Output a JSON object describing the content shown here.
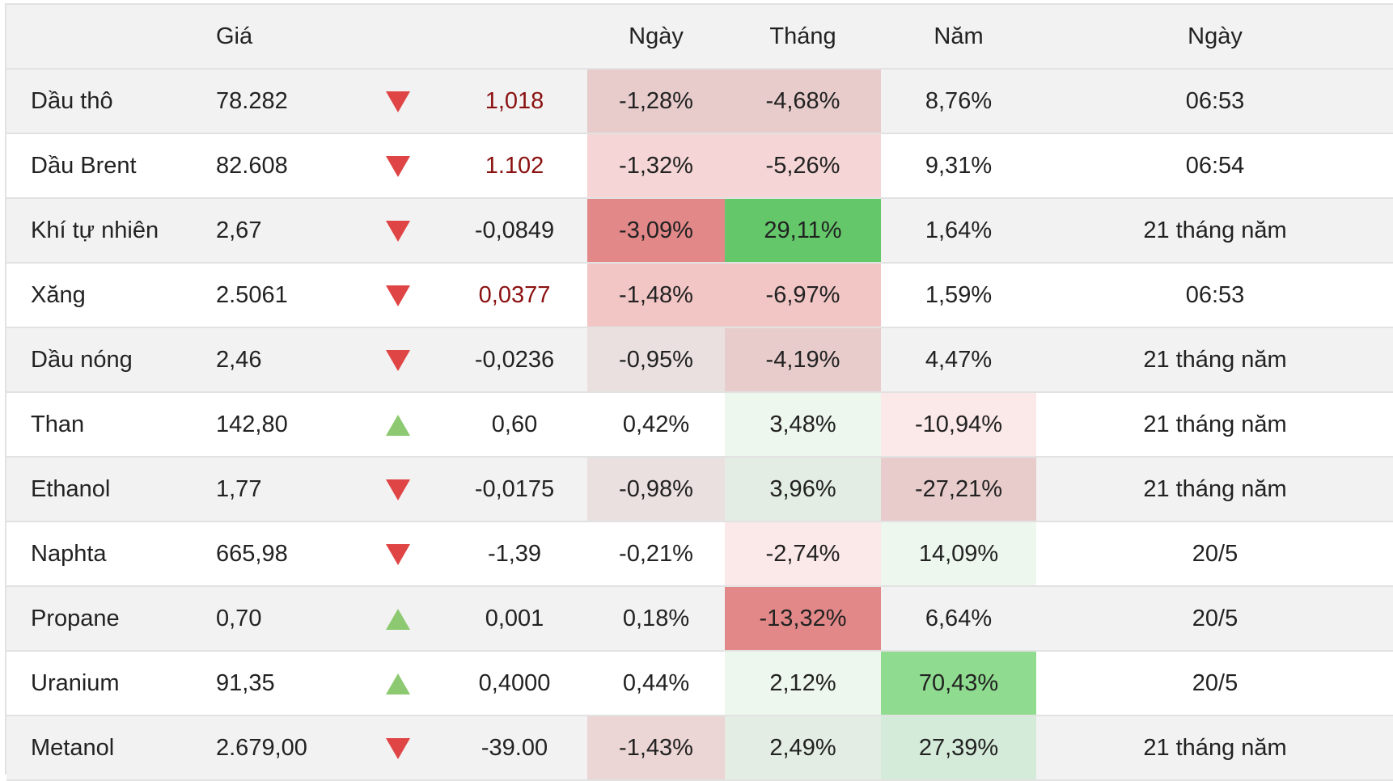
{
  "header": {
    "name": "",
    "price": "Giá",
    "direction": "",
    "change": "",
    "day": "Ngày",
    "month": "Tháng",
    "year": "Năm",
    "date": "Ngày"
  },
  "colors": {
    "arrow_down": "#e04545",
    "arrow_up": "#8cc970",
    "change_red_text": "#8b1010"
  },
  "rows": [
    {
      "name": "Dầu thô",
      "price": "78.282",
      "direction": "down",
      "change": "1,018",
      "change_red": true,
      "day": "-1,28%",
      "day_bg": "#e8cccc",
      "month": "-4,68%",
      "month_bg": "#e8cccc",
      "year": "8,76%",
      "year_bg": "",
      "date": "06:53"
    },
    {
      "name": "Dầu Brent",
      "price": "82.608",
      "direction": "down",
      "change": "1.102",
      "change_red": true,
      "day": "-1,32%",
      "day_bg": "#f5d5d5",
      "month": "-5,26%",
      "month_bg": "#f5d5d5",
      "year": "9,31%",
      "year_bg": "",
      "date": "06:54"
    },
    {
      "name": "Khí tự nhiên",
      "price": "2,67",
      "direction": "down",
      "change": "-0,0849",
      "change_red": false,
      "day": "-3,09%",
      "day_bg": "#e28888",
      "month": "29,11%",
      "month_bg": "#64c86a",
      "year": "1,64%",
      "year_bg": "",
      "date": "21 tháng năm"
    },
    {
      "name": "Xăng",
      "price": "2.5061",
      "direction": "down",
      "change": "0,0377",
      "change_red": true,
      "day": "-1,48%",
      "day_bg": "#f3c6c6",
      "month": "-6,97%",
      "month_bg": "#f3c6c6",
      "year": "1,59%",
      "year_bg": "",
      "date": "06:53"
    },
    {
      "name": "Dầu nóng",
      "price": "2,46",
      "direction": "down",
      "change": "-0,0236",
      "change_red": false,
      "day": "-0,95%",
      "day_bg": "#ebe0e0",
      "month": "-4,19%",
      "month_bg": "#e8cccc",
      "year": "4,47%",
      "year_bg": "",
      "date": "21 tháng năm"
    },
    {
      "name": "Than",
      "price": "142,80",
      "direction": "up",
      "change": "0,60",
      "change_red": false,
      "day": "0,42%",
      "day_bg": "",
      "month": "3,48%",
      "month_bg": "#eef7ee",
      "year": "-10,94%",
      "year_bg": "#fbe8e8",
      "date": "21 tháng năm"
    },
    {
      "name": "Ethanol",
      "price": "1,77",
      "direction": "down",
      "change": "-0,0175",
      "change_red": false,
      "day": "-0,98%",
      "day_bg": "#ebe0e0",
      "month": "3,96%",
      "month_bg": "#e3ede3",
      "year": "-27,21%",
      "year_bg": "#e8cccc",
      "date": "21 tháng năm"
    },
    {
      "name": "Naphta",
      "price": "665,98",
      "direction": "down",
      "change": "-1,39",
      "change_red": false,
      "day": "-0,21%",
      "day_bg": "",
      "month": "-2,74%",
      "month_bg": "#fbe8e8",
      "year": "14,09%",
      "year_bg": "#eef7ee",
      "date": "20/5"
    },
    {
      "name": "Propane",
      "price": "0,70",
      "direction": "up",
      "change": "0,001",
      "change_red": false,
      "day": "0,18%",
      "day_bg": "",
      "month": "-13,32%",
      "month_bg": "#e28888",
      "year": "6,64%",
      "year_bg": "",
      "date": "20/5"
    },
    {
      "name": "Uranium",
      "price": "91,35",
      "direction": "up",
      "change": "0,4000",
      "change_red": false,
      "day": "0,44%",
      "day_bg": "",
      "month": "2,12%",
      "month_bg": "#eef7ee",
      "year": "70,43%",
      "year_bg": "#8fdb8f",
      "date": "20/5"
    },
    {
      "name": "Metanol",
      "price": "2.679,00",
      "direction": "down",
      "change": "-39.00",
      "change_red": false,
      "day": "-1,43%",
      "day_bg": "#ebd5d5",
      "month": "2,49%",
      "month_bg": "#e3ede3",
      "year": "27,39%",
      "year_bg": "#d4ebd9",
      "date": "21 tháng năm"
    }
  ]
}
